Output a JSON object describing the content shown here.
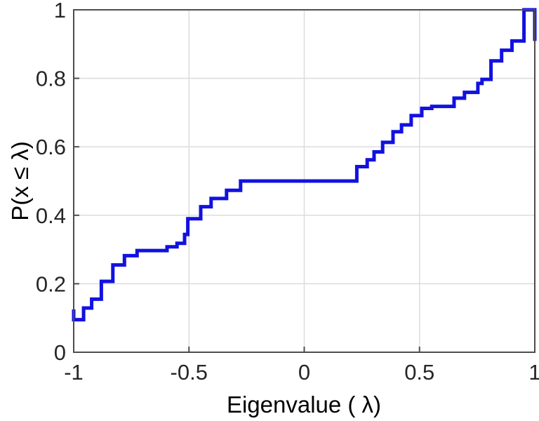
{
  "figure": {
    "background": "#ffffff"
  },
  "chart_data": {
    "type": "line",
    "subtype": "stairs-ecdf",
    "title": "",
    "xlabel": "Eigenvalue ( λ)",
    "ylabel": "P(x ≤ λ)",
    "xlim": [
      -1,
      1
    ],
    "ylim": [
      0,
      1
    ],
    "grid": true,
    "legend_position": "none",
    "xticks": {
      "values": [
        -1,
        -0.5,
        0,
        0.5,
        1
      ],
      "labels": [
        "-1",
        "-0.5",
        "0",
        "0.5",
        "1"
      ]
    },
    "yticks": {
      "values": [
        0,
        0.2,
        0.4,
        0.6,
        0.8,
        1
      ],
      "labels": [
        "0",
        "0.2",
        "0.4",
        "0.6",
        "0.8",
        "1"
      ]
    },
    "line_color": "#1111e0",
    "line_width": 5,
    "grid_color": "#dcdcdc",
    "axis_color": "#4d4d4d",
    "text_color": "#262626",
    "path_vertices": [
      [
        -1.0,
        0.125
      ],
      [
        -1.0,
        0.095
      ],
      [
        -0.957,
        0.095
      ],
      [
        -0.957,
        0.129
      ],
      [
        -0.922,
        0.129
      ],
      [
        -0.922,
        0.155
      ],
      [
        -0.88,
        0.155
      ],
      [
        -0.88,
        0.207
      ],
      [
        -0.83,
        0.207
      ],
      [
        -0.83,
        0.255
      ],
      [
        -0.78,
        0.255
      ],
      [
        -0.78,
        0.282
      ],
      [
        -0.725,
        0.282
      ],
      [
        -0.725,
        0.297
      ],
      [
        -0.595,
        0.297
      ],
      [
        -0.595,
        0.308
      ],
      [
        -0.552,
        0.308
      ],
      [
        -0.552,
        0.318
      ],
      [
        -0.519,
        0.318
      ],
      [
        -0.519,
        0.344
      ],
      [
        -0.505,
        0.344
      ],
      [
        -0.505,
        0.39
      ],
      [
        -0.449,
        0.39
      ],
      [
        -0.449,
        0.425
      ],
      [
        -0.404,
        0.425
      ],
      [
        -0.404,
        0.449
      ],
      [
        -0.337,
        0.449
      ],
      [
        -0.337,
        0.473
      ],
      [
        -0.276,
        0.473
      ],
      [
        -0.276,
        0.5
      ],
      [
        0.228,
        0.5
      ],
      [
        0.228,
        0.542
      ],
      [
        0.273,
        0.542
      ],
      [
        0.273,
        0.562
      ],
      [
        0.303,
        0.562
      ],
      [
        0.303,
        0.585
      ],
      [
        0.34,
        0.585
      ],
      [
        0.34,
        0.613
      ],
      [
        0.385,
        0.613
      ],
      [
        0.385,
        0.644
      ],
      [
        0.422,
        0.644
      ],
      [
        0.422,
        0.664
      ],
      [
        0.464,
        0.664
      ],
      [
        0.464,
        0.691
      ],
      [
        0.51,
        0.691
      ],
      [
        0.51,
        0.712
      ],
      [
        0.553,
        0.712
      ],
      [
        0.553,
        0.718
      ],
      [
        0.65,
        0.718
      ],
      [
        0.65,
        0.742
      ],
      [
        0.695,
        0.742
      ],
      [
        0.695,
        0.759
      ],
      [
        0.753,
        0.759
      ],
      [
        0.753,
        0.785
      ],
      [
        0.771,
        0.785
      ],
      [
        0.771,
        0.797
      ],
      [
        0.81,
        0.797
      ],
      [
        0.81,
        0.851
      ],
      [
        0.856,
        0.851
      ],
      [
        0.856,
        0.882
      ],
      [
        0.901,
        0.882
      ],
      [
        0.901,
        0.909
      ],
      [
        0.953,
        0.909
      ],
      [
        0.953,
        1.0
      ],
      [
        1.0,
        1.0
      ],
      [
        1.0,
        0.909
      ]
    ]
  }
}
